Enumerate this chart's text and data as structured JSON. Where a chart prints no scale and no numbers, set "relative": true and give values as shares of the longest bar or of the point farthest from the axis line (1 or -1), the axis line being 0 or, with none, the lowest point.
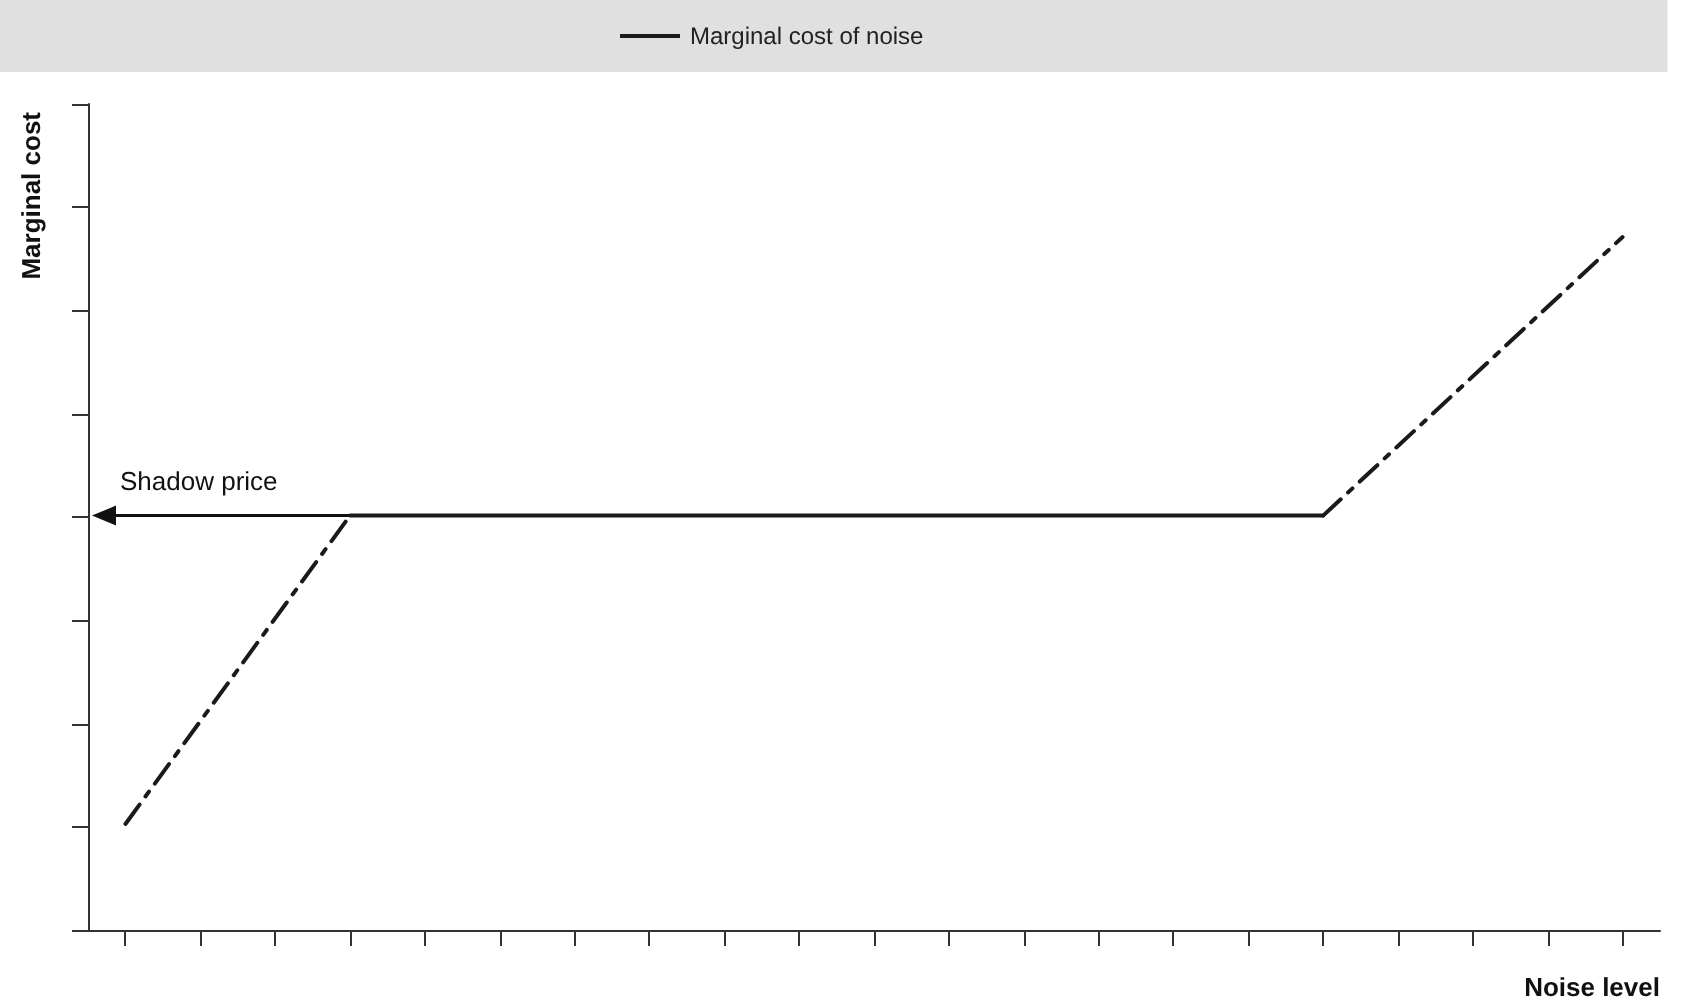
{
  "chart_data": {
    "type": "line",
    "relative": true,
    "xlabel": "Noise level",
    "ylabel": "Marginal cost",
    "legend": "top",
    "grid": false,
    "marker": "none",
    "categories": [
      null,
      null,
      null,
      null,
      null,
      null,
      null,
      null,
      null,
      null,
      null,
      null,
      null,
      null,
      null,
      null,
      null,
      null,
      null,
      null,
      null
    ],
    "series": [
      {
        "color": "#1a1a1a",
        "line_style": "dashed",
        "values": [
          0.153,
          null,
          null,
          0.598,
          null,
          null,
          null,
          null,
          null,
          null,
          null,
          null,
          null,
          null,
          null,
          null,
          null,
          null,
          null,
          null,
          null
        ]
      },
      {
        "name": "Marginal cost of noise",
        "color": "#1a1a1a",
        "line_style": "solid",
        "values": [
          null,
          null,
          null,
          0.598,
          null,
          null,
          null,
          null,
          null,
          null,
          null,
          null,
          null,
          null,
          null,
          null,
          0.598,
          null,
          null,
          null,
          null
        ]
      },
      {
        "color": "#1a1a1a",
        "line_style": "dashed",
        "values": [
          null,
          null,
          null,
          null,
          null,
          null,
          null,
          null,
          null,
          null,
          null,
          null,
          null,
          null,
          null,
          null,
          0.598,
          null,
          null,
          null,
          1
        ]
      }
    ],
    "annotations": [
      "Shadow price"
    ]
  }
}
